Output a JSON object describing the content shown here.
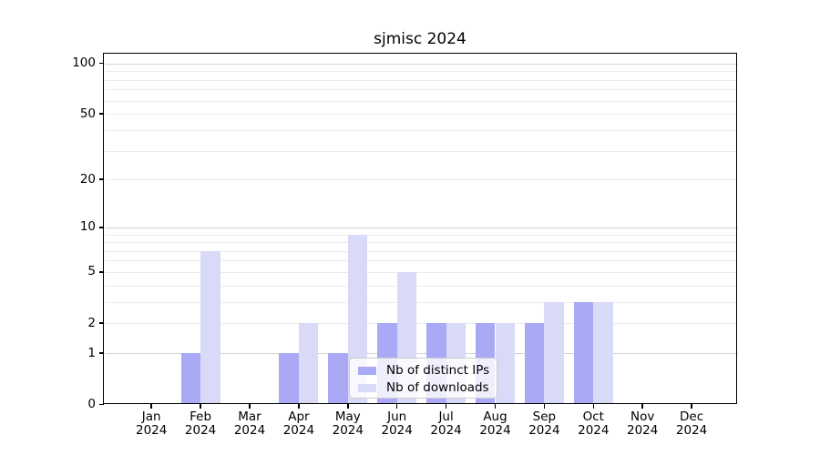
{
  "chart_data": {
    "type": "bar",
    "title": "sjmisc 2024",
    "categories": [
      "Jan 2024",
      "Feb 2024",
      "Mar 2024",
      "Apr 2024",
      "May 2024",
      "Jun 2024",
      "Jul 2024",
      "Aug 2024",
      "Sep 2024",
      "Oct 2024",
      "Nov 2024",
      "Dec 2024"
    ],
    "month_labels": [
      "Jan",
      "Feb",
      "Mar",
      "Apr",
      "May",
      "Jun",
      "Jul",
      "Aug",
      "Sep",
      "Oct",
      "Nov",
      "Dec"
    ],
    "year_label": "2024",
    "series": [
      {
        "name": "Nb of distinct IPs",
        "color": "#a9a9f6",
        "values": [
          0,
          1,
          0,
          1,
          1,
          2,
          2,
          2,
          2,
          3,
          0,
          0
        ]
      },
      {
        "name": "Nb of downloads",
        "color": "#d9d9f8",
        "values": [
          0,
          7,
          0,
          2,
          9,
          5,
          2,
          2,
          3,
          3,
          0,
          0
        ]
      }
    ],
    "y_axis": {
      "scale": "log10(1+x)",
      "tick_values": [
        0,
        1,
        2,
        5,
        10,
        20,
        50,
        100
      ],
      "tick_labels": [
        "0",
        "1",
        "2",
        "5",
        "10",
        "20",
        "50",
        "100"
      ],
      "major_gridlines": [
        1,
        10,
        100
      ],
      "minor_gridlines": [
        2,
        3,
        4,
        5,
        6,
        7,
        8,
        9,
        20,
        30,
        40,
        50,
        60,
        70,
        80,
        90
      ],
      "ylim": [
        0,
        114
      ]
    },
    "legend": {
      "position": "lower-center-inside",
      "entries": [
        "Nb of distinct IPs",
        "Nb of downloads"
      ]
    },
    "grid": true,
    "style": {
      "grid_minor_color": "#ececec",
      "grid_major_color": "#d3d3d3",
      "axis_color": "#000000",
      "legend_border_color": "#cccccc",
      "legend_bg": "rgba(255,255,255,0.8)",
      "background": "#ffffff"
    }
  }
}
